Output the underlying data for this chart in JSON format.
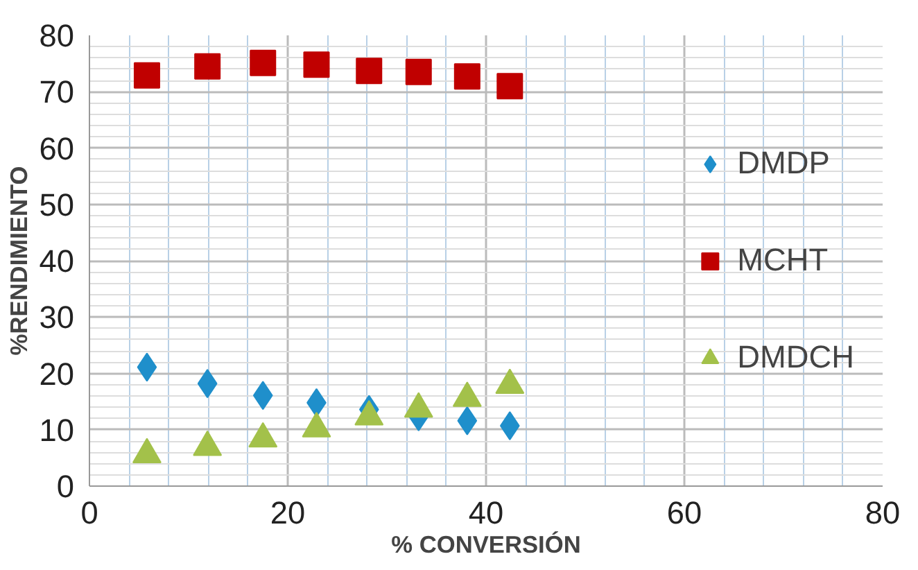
{
  "chart_data": {
    "type": "scatter",
    "xlabel": "% CONVERSIÓN",
    "ylabel": "%RENDIMIENTO",
    "x": [
      5.8,
      11.9,
      17.5,
      22.9,
      28.2,
      33.2,
      38.1,
      42.4
    ],
    "series": [
      {
        "name": "DMDP",
        "color": "#1f8fcb",
        "marker": "diamond",
        "values": [
          21.1,
          18.2,
          16.1,
          14.8,
          13.6,
          12.3,
          11.6,
          10.7
        ]
      },
      {
        "name": "MCHT",
        "color": "#c00000",
        "marker": "square",
        "values": [
          72.9,
          74.5,
          75.1,
          74.8,
          73.7,
          73.5,
          72.7,
          71.0
        ]
      },
      {
        "name": "DMDCH",
        "color": "#a3c14a",
        "marker": "triangle",
        "values": [
          5.6,
          6.9,
          8.4,
          10.2,
          12.3,
          13.7,
          15.6,
          17.9
        ]
      }
    ],
    "xlim": [
      0,
      80
    ],
    "ylim": [
      0,
      80
    ],
    "xticks": [
      0,
      {
        "value": 4,
        "label": null
      },
      {
        "value": 8,
        "label": null
      },
      {
        "value": 12,
        "label": null
      },
      {
        "value": 16,
        "label": null
      },
      20,
      {
        "value": 24,
        "label": null
      },
      {
        "value": 28,
        "label": null
      },
      {
        "value": 32,
        "label": null
      },
      {
        "value": 36,
        "label": null
      },
      40,
      {
        "value": 44,
        "label": null
      },
      {
        "value": 48,
        "label": null
      },
      {
        "value": 52,
        "label": null
      },
      {
        "value": 56,
        "label": null
      },
      60,
      {
        "value": 64,
        "label": null
      },
      {
        "value": 68,
        "label": null
      },
      {
        "value": 72,
        "label": null
      },
      {
        "value": 76,
        "label": null
      },
      80
    ],
    "yticks": [
      0,
      {
        "value": 2,
        "label": null
      },
      {
        "value": 4,
        "label": null
      },
      {
        "value": 6,
        "label": null
      },
      {
        "value": 8,
        "label": null
      },
      10,
      {
        "value": 12,
        "label": null
      },
      {
        "value": 14,
        "label": null
      },
      {
        "value": 16,
        "label": null
      },
      {
        "value": 18,
        "label": null
      },
      20,
      {
        "value": 22,
        "label": null
      },
      {
        "value": 24,
        "label": null
      },
      {
        "value": 26,
        "label": null
      },
      {
        "value": 28,
        "label": null
      },
      30,
      {
        "value": 32,
        "label": null
      },
      {
        "value": 34,
        "label": null
      },
      {
        "value": 36,
        "label": null
      },
      {
        "value": 38,
        "label": null
      },
      40,
      {
        "value": 42,
        "label": null
      },
      {
        "value": 44,
        "label": null
      },
      {
        "value": 46,
        "label": null
      },
      {
        "value": 48,
        "label": null
      },
      50,
      {
        "value": 52,
        "label": null
      },
      {
        "value": 54,
        "label": null
      },
      {
        "value": 56,
        "label": null
      },
      {
        "value": 58,
        "label": null
      },
      60,
      {
        "value": 62,
        "label": null
      },
      {
        "value": 64,
        "label": null
      },
      {
        "value": 66,
        "label": null
      },
      {
        "value": 68,
        "label": null
      },
      70,
      {
        "value": 72,
        "label": null
      },
      {
        "value": 74,
        "label": null
      },
      {
        "value": 76,
        "label": null
      },
      {
        "value": 78,
        "label": null
      },
      80
    ],
    "grid": true,
    "legend": "right"
  }
}
